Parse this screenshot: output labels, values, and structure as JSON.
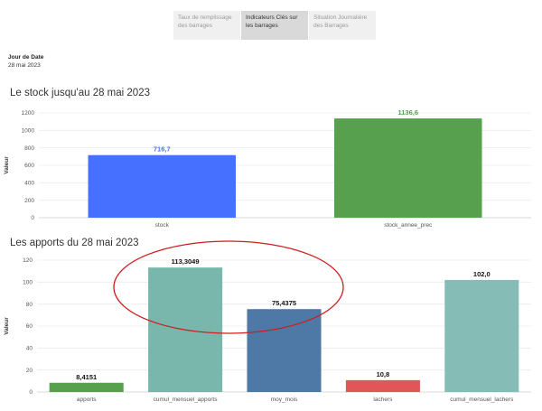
{
  "tabs": [
    {
      "label": "Taux de remplissage des barrages",
      "active": false
    },
    {
      "label": "Indicateurs Clés sur les barrages",
      "active": true
    },
    {
      "label": "Situation Journalière des Barrages",
      "active": false
    }
  ],
  "filter": {
    "label": "Jour de Date",
    "value": "28 mai 2023"
  },
  "chart_data": [
    {
      "type": "bar",
      "title": "Le stock jusqu'au  28 mai 2023",
      "ylabel": "Valeur",
      "ylim": [
        0,
        1200
      ],
      "yticks": [
        "0",
        "200",
        "400",
        "600",
        "800",
        "1000",
        "1200"
      ],
      "categories": [
        "stock",
        "stock_annee_prec"
      ],
      "values": [
        716.7,
        1136.6
      ],
      "value_labels": [
        "716,7",
        "1136,6"
      ],
      "colors": [
        "#4670ff",
        "#56a04e"
      ],
      "label_colors": [
        "#4670ff",
        "#56a04e"
      ],
      "grid": true
    },
    {
      "type": "bar",
      "title": "Les apports du 28 mai 2023",
      "ylabel": "Valeur",
      "ylim": [
        0,
        120
      ],
      "yticks": [
        "0",
        "20",
        "40",
        "60",
        "80",
        "100",
        "120"
      ],
      "categories": [
        "apports",
        "cumul_mensuel_apports",
        "moy_mois",
        "lachers",
        "cumul_mensuel_lachers"
      ],
      "values": [
        8.4151,
        113.3049,
        75.4375,
        10.8,
        102.0
      ],
      "value_labels": [
        "8,4151",
        "113,3049",
        "75,4375",
        "10,8",
        "102,0"
      ],
      "colors": [
        "#56a04e",
        "#79b7ad",
        "#4e79a7",
        "#e15759",
        "#86bcb6"
      ],
      "label_colors": [
        "#111111",
        "#111111",
        "#111111",
        "#111111",
        "#111111"
      ],
      "grid": true
    }
  ],
  "annotation": {
    "shape": "ellipse",
    "color": "#cc1f1f"
  }
}
